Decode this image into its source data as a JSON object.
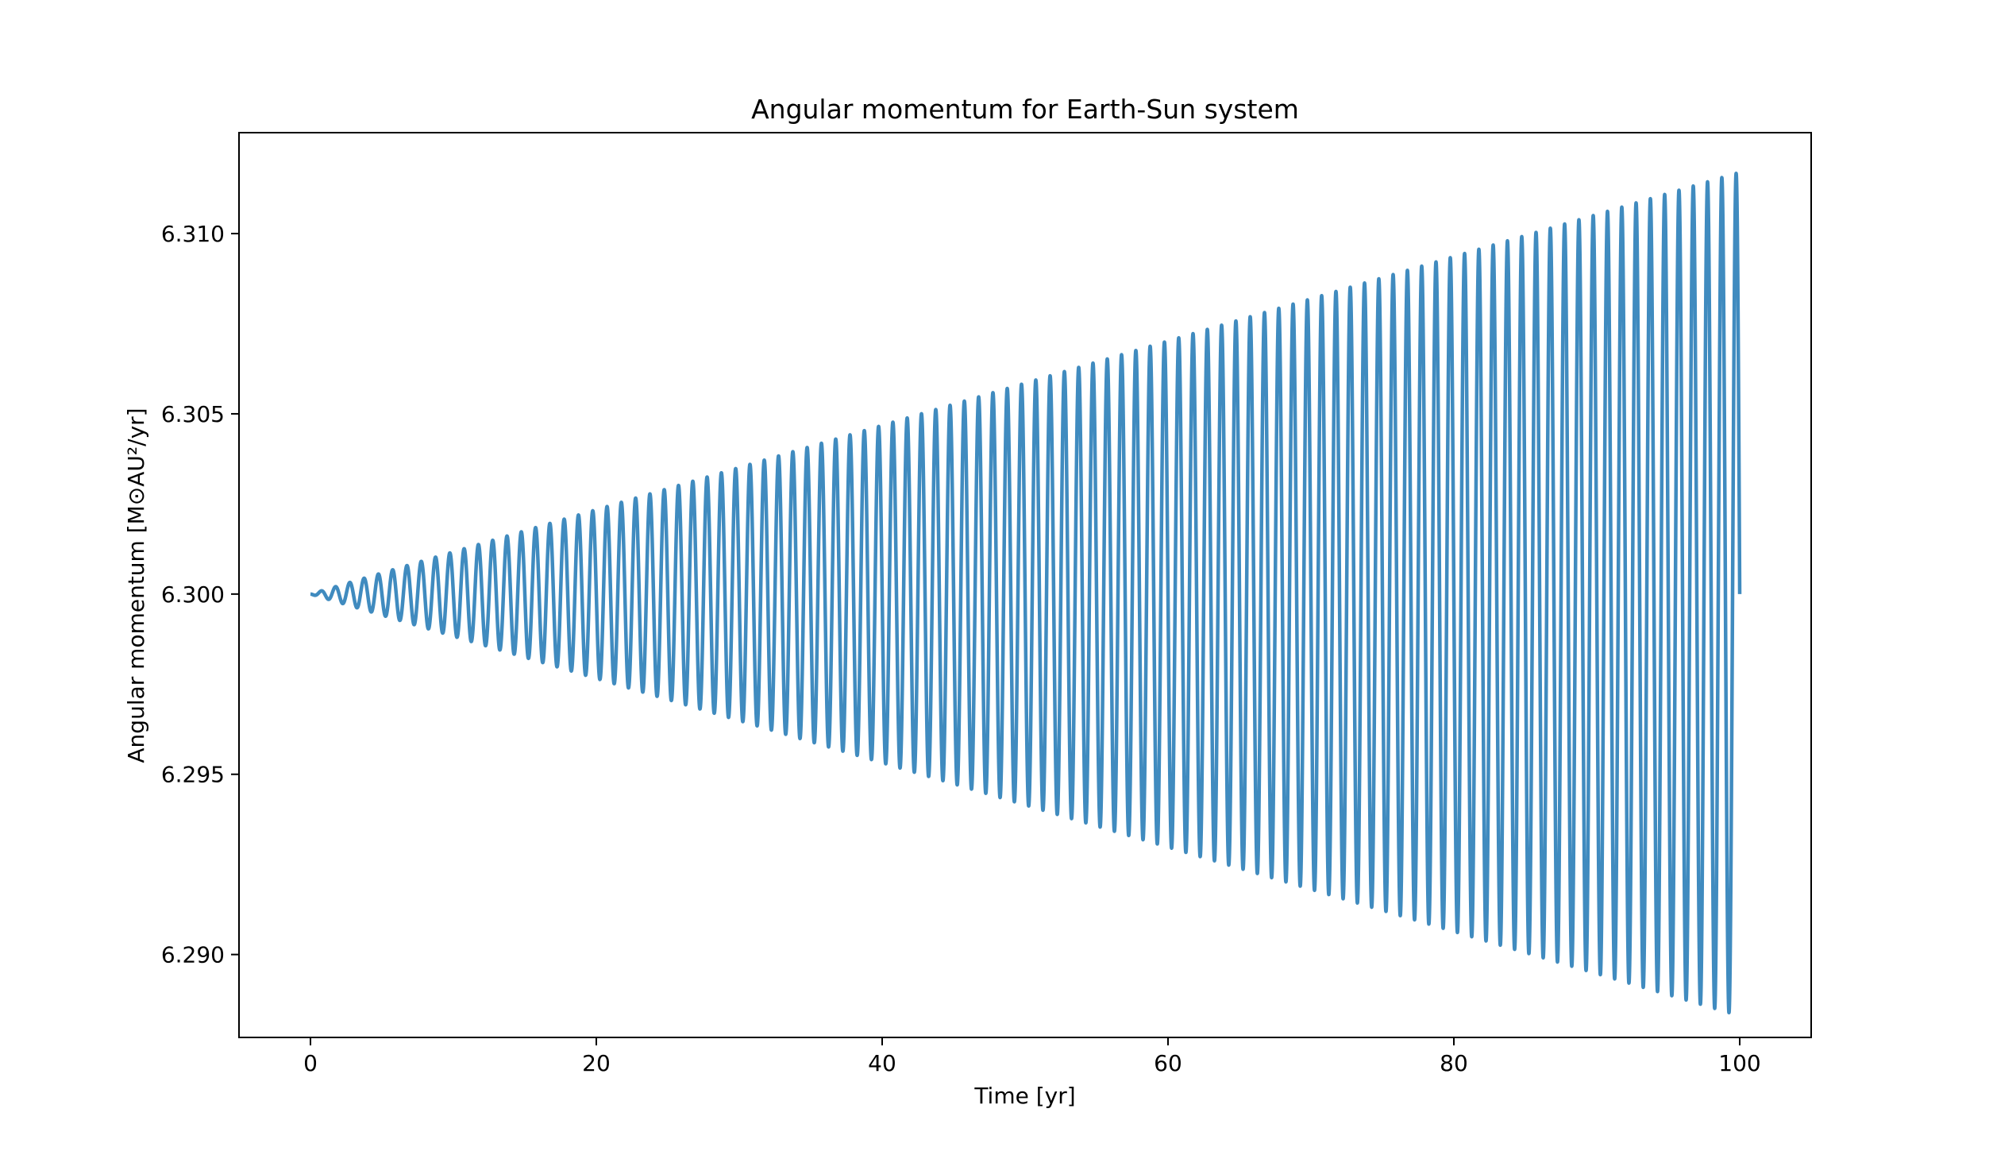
{
  "chart_data": {
    "type": "line",
    "title": "Angular momentum for Earth-Sun system",
    "xlabel": "Time [yr]",
    "ylabel": "Angular momentum [M⊙AU²/yr]",
    "xlim": [
      -5,
      105
    ],
    "ylim": [
      6.2877,
      6.3128
    ],
    "xticks": [
      0,
      20,
      40,
      60,
      80,
      100
    ],
    "xtick_labels": [
      "0",
      "20",
      "40",
      "60",
      "80",
      "100"
    ],
    "yticks": [
      6.29,
      6.295,
      6.3,
      6.305,
      6.31
    ],
    "ytick_labels": [
      "6.290",
      "6.295",
      "6.300",
      "6.305",
      "6.310"
    ],
    "grid": false,
    "series": [
      {
        "color": "#1f77b4",
        "function": "oscillation with linearly growing amplitude",
        "baseline": 6.3,
        "period_yr": 1.0,
        "amplitude_at_t0": 0.0,
        "amplitude_at_t100": 0.0117,
        "x_start": 0,
        "x_end": 100,
        "max_value": 6.3117,
        "min_value": 6.2882
      }
    ]
  }
}
